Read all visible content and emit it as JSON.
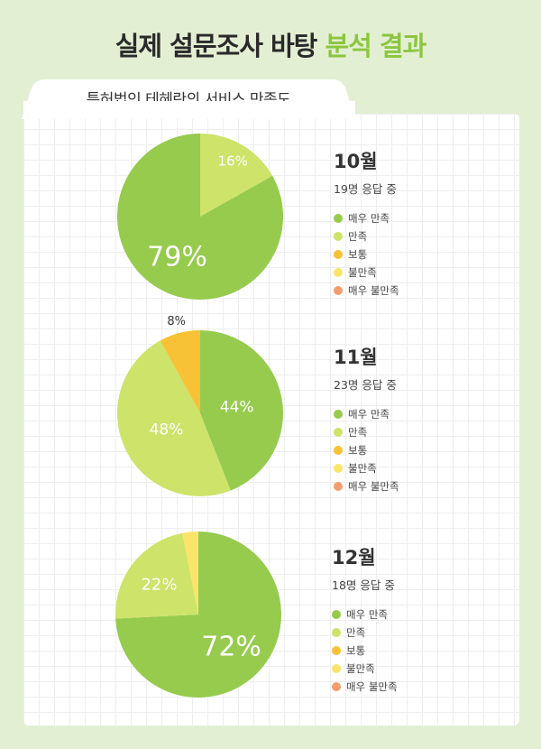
{
  "header": {
    "title_main": "실제 설문조사 바탕",
    "title_accent": "분석 결과",
    "accent_color": "#8cc63f",
    "subtitle_tab": "특허법인 테헤란의 서비스 만족도"
  },
  "categories": [
    "매우 만족",
    "만족",
    "보통",
    "불만족",
    "매우 불만족"
  ],
  "colors": [
    "#96cb4e",
    "#cde36a",
    "#f8c236",
    "#fbe46a",
    "#f39e70"
  ],
  "chart_data": [
    {
      "type": "pie",
      "month": "10월",
      "responses": "19명 응답 중",
      "categories": [
        "매우 만족",
        "만족",
        "보통",
        "불만족",
        "매우 불만족"
      ],
      "values": [
        79,
        16,
        0,
        0,
        0
      ],
      "labels": [
        "79%",
        "16%",
        "",
        "",
        ""
      ]
    },
    {
      "type": "pie",
      "month": "11월",
      "responses": "23명 응답 중",
      "categories": [
        "매우 만족",
        "만족",
        "보통",
        "불만족",
        "매우 불만족"
      ],
      "values": [
        44,
        48,
        8,
        0,
        0
      ],
      "labels": [
        "44%",
        "48%",
        "8%",
        "",
        ""
      ]
    },
    {
      "type": "pie",
      "month": "12월",
      "responses": "18명 응답 중",
      "categories": [
        "매우 만족",
        "만족",
        "보통",
        "불만족",
        "매우 불만족"
      ],
      "values": [
        72,
        22,
        0,
        3,
        0
      ],
      "labels": [
        "72%",
        "22%",
        "",
        "",
        ""
      ]
    }
  ]
}
